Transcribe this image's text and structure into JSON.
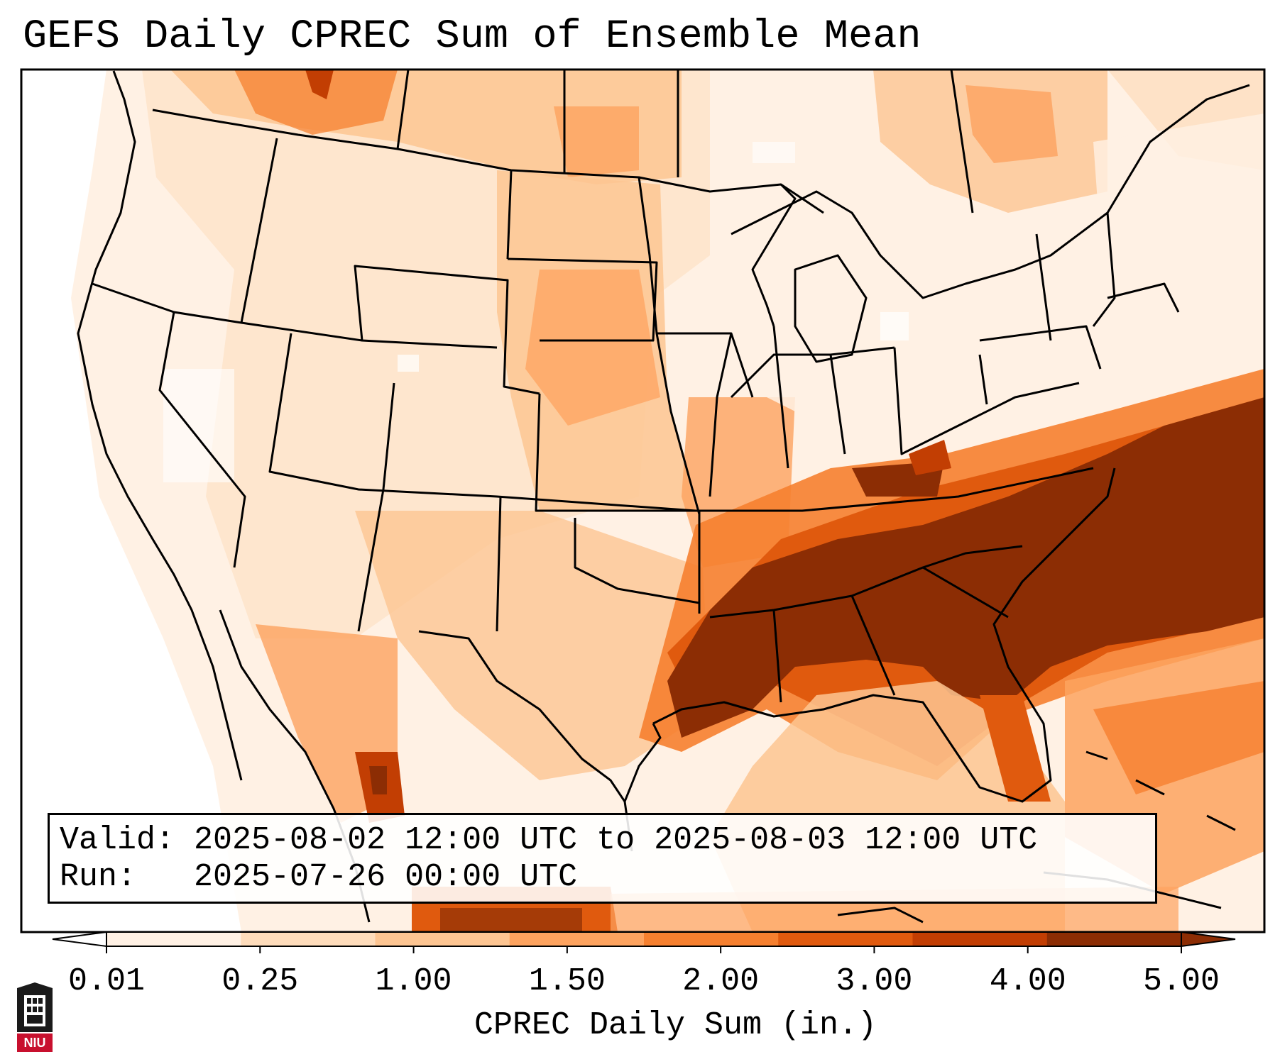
{
  "title": "GEFS Daily CPREC Sum of Ensemble Mean",
  "info": {
    "valid": "Valid: 2025-08-02 12:00 UTC to 2025-08-03 12:00 UTC",
    "run": "Run:   2025-07-26 00:00 UTC"
  },
  "colorbar": {
    "label": "CPREC Daily Sum (in.)",
    "ticks": [
      "0.01",
      "0.25",
      "1.00",
      "1.50",
      "2.00",
      "3.00",
      "4.00",
      "5.00"
    ],
    "colors": [
      "#fff1e4",
      "#fedcbb",
      "#fdc592",
      "#fda35f",
      "#f6802f",
      "#e05a0e",
      "#c23e03",
      "#8c2d04"
    ],
    "under_color": "#ffffff",
    "over_color": "#8c2d04"
  },
  "logo": {
    "text": "NIU",
    "icon": "university-tower-icon"
  }
}
